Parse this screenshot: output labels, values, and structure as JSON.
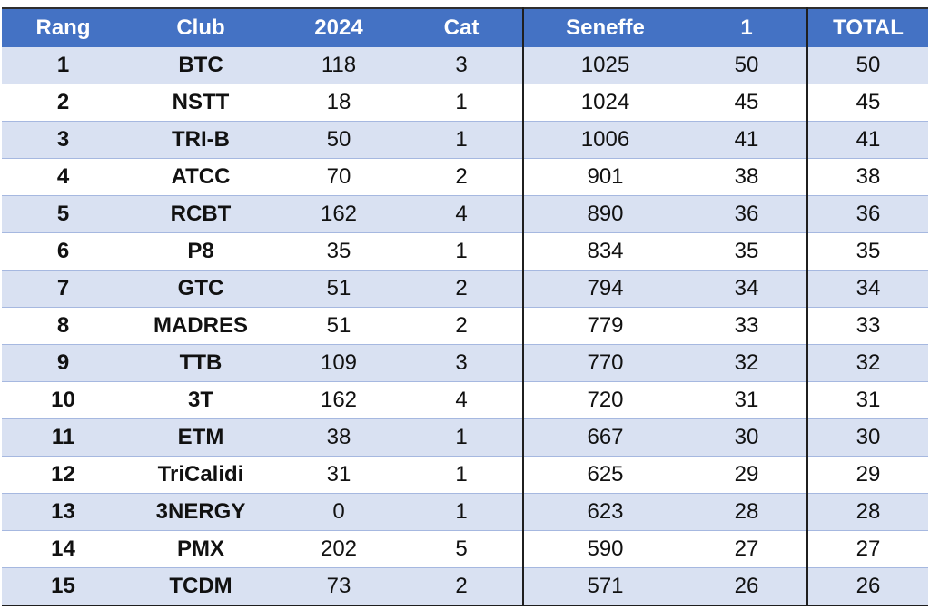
{
  "table": {
    "headers": [
      "Rang",
      "Club",
      "2024",
      "Cat",
      "Seneffe",
      "1",
      "TOTAL"
    ],
    "rows": [
      [
        "1",
        "BTC",
        "118",
        "3",
        "1025",
        "50",
        "50"
      ],
      [
        "2",
        "NSTT",
        "18",
        "1",
        "1024",
        "45",
        "45"
      ],
      [
        "3",
        "TRI-B",
        "50",
        "1",
        "1006",
        "41",
        "41"
      ],
      [
        "4",
        "ATCC",
        "70",
        "2",
        "901",
        "38",
        "38"
      ],
      [
        "5",
        "RCBT",
        "162",
        "4",
        "890",
        "36",
        "36"
      ],
      [
        "6",
        "P8",
        "35",
        "1",
        "834",
        "35",
        "35"
      ],
      [
        "7",
        "GTC",
        "51",
        "2",
        "794",
        "34",
        "34"
      ],
      [
        "8",
        "MADRES",
        "51",
        "2",
        "779",
        "33",
        "33"
      ],
      [
        "9",
        "TTB",
        "109",
        "3",
        "770",
        "32",
        "32"
      ],
      [
        "10",
        "3T",
        "162",
        "4",
        "720",
        "31",
        "31"
      ],
      [
        "11",
        "ETM",
        "38",
        "1",
        "667",
        "30",
        "30"
      ],
      [
        "12",
        "TriCalidi",
        "31",
        "1",
        "625",
        "29",
        "29"
      ],
      [
        "13",
        "3NERGY",
        "0",
        "1",
        "623",
        "28",
        "28"
      ],
      [
        "14",
        "PMX",
        "202",
        "5",
        "590",
        "27",
        "27"
      ],
      [
        "15",
        "TCDM",
        "73",
        "2",
        "571",
        "26",
        "26"
      ]
    ]
  },
  "colors": {
    "header_bg": "#4472c4",
    "header_text": "#ffffff",
    "band_row": "#d9e1f2",
    "plain_row": "#ffffff"
  }
}
